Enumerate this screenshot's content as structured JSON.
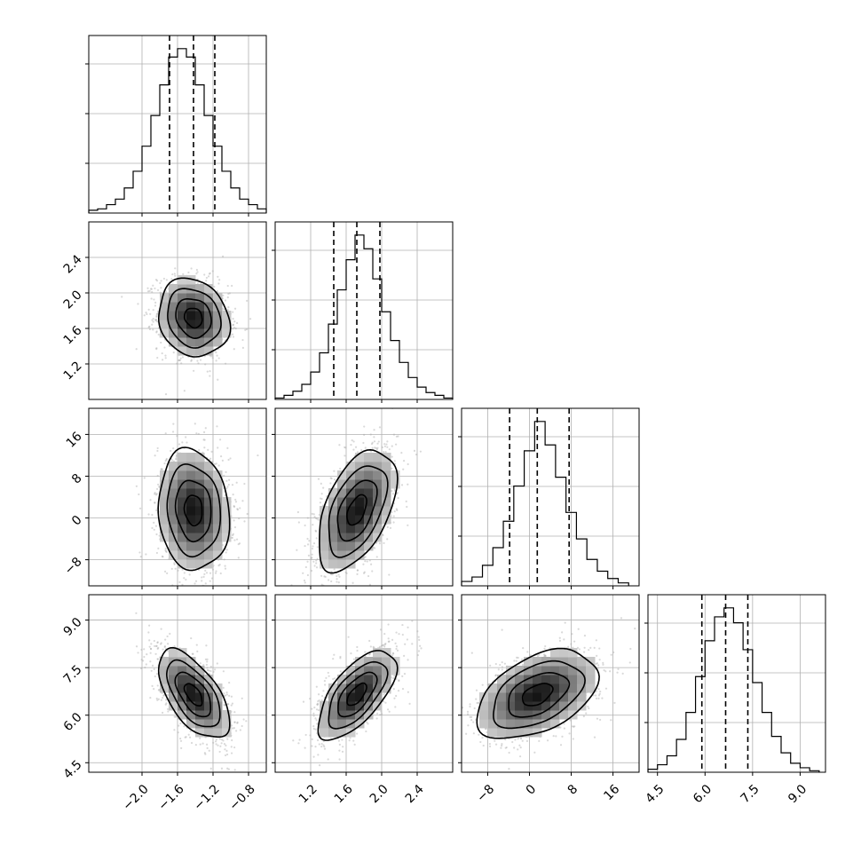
{
  "chart_data": {
    "type": "corner",
    "parameters": [
      {
        "index": 0,
        "xlim": [
          -2.6,
          -0.6
        ],
        "ticks": [
          -2.0,
          -1.6,
          -1.2,
          -0.8
        ],
        "tick_labels": [
          "−2.0",
          "−1.6",
          "−1.2",
          "−0.8"
        ],
        "center": -1.42,
        "sd": 0.2,
        "quantiles": [
          -1.69,
          -1.42,
          -1.18
        ],
        "hist_bins": [
          -2.6,
          -2.5,
          -2.4,
          -2.3,
          -2.2,
          -2.1,
          -2.0,
          -1.9,
          -1.8,
          -1.7,
          -1.6,
          -1.5,
          -1.4,
          -1.3,
          -1.2,
          -1.1,
          -1.0,
          -0.9,
          -0.8,
          -0.7
        ],
        "hist_counts": [
          2,
          3,
          6,
          10,
          18,
          30,
          48,
          70,
          92,
          112,
          118,
          112,
          92,
          70,
          48,
          30,
          18,
          10,
          6,
          3
        ]
      },
      {
        "index": 1,
        "xlim": [
          0.8,
          2.8
        ],
        "ticks": [
          1.2,
          1.6,
          2.0,
          2.4
        ],
        "tick_labels": [
          "1.2",
          "1.6",
          "2.0",
          "2.4"
        ],
        "center": 1.72,
        "sd": 0.22,
        "quantiles": [
          1.46,
          1.72,
          1.98
        ],
        "hist_bins": [
          0.8,
          0.9,
          1.0,
          1.1,
          1.2,
          1.3,
          1.4,
          1.5,
          1.6,
          1.7,
          1.8,
          1.9,
          2.0,
          2.1,
          2.2,
          2.3,
          2.4,
          2.5,
          2.6,
          2.7
        ],
        "hist_counts": [
          1,
          3,
          6,
          11,
          20,
          34,
          55,
          80,
          102,
          120,
          110,
          88,
          64,
          43,
          27,
          16,
          9,
          5,
          3,
          1
        ]
      },
      {
        "index": 2,
        "xlim": [
          -13,
          21
        ],
        "ticks": [
          -8,
          0,
          8,
          16
        ],
        "tick_labels": [
          "−8",
          "0",
          "8",
          "16"
        ],
        "center": 1.5,
        "sd": 5.8,
        "quantiles": [
          -3.8,
          1.5,
          7.6
        ],
        "hist_bins": [
          -13,
          -11,
          -9,
          -7,
          -5,
          -3,
          -1,
          1,
          3,
          5,
          7,
          9,
          11,
          13,
          15,
          17
        ],
        "hist_counts": [
          3,
          6,
          14,
          26,
          44,
          68,
          92,
          112,
          96,
          74,
          50,
          32,
          18,
          10,
          5,
          2
        ]
      },
      {
        "index": 3,
        "xlim": [
          4.2,
          9.8
        ],
        "ticks": [
          4.5,
          6.0,
          7.5,
          9.0
        ],
        "tick_labels": [
          "4.5",
          "6.0",
          "7.5",
          "9.0"
        ],
        "center": 6.65,
        "sd": 0.7,
        "quantiles": [
          5.9,
          6.65,
          7.35
        ],
        "hist_bins": [
          4.2,
          4.5,
          4.8,
          5.1,
          5.4,
          5.7,
          6.0,
          6.3,
          6.6,
          6.9,
          7.2,
          7.5,
          7.8,
          8.1,
          8.4,
          8.7,
          9.0,
          9.3
        ],
        "hist_counts": [
          2,
          5,
          11,
          22,
          40,
          64,
          88,
          104,
          110,
          100,
          82,
          60,
          40,
          24,
          13,
          6,
          3,
          1
        ]
      }
    ],
    "pairs": [
      {
        "x": 0,
        "y": 1,
        "corr": -0.15
      },
      {
        "x": 0,
        "y": 2,
        "corr": -0.1
      },
      {
        "x": 1,
        "y": 2,
        "corr": 0.5
      },
      {
        "x": 0,
        "y": 3,
        "corr": -0.6
      },
      {
        "x": 1,
        "y": 3,
        "corr": 0.65
      },
      {
        "x": 2,
        "y": 3,
        "corr": 0.45
      }
    ],
    "y_axis_labels": {
      "1": [
        "1.2",
        "1.6",
        "2.0",
        "2.4"
      ],
      "2": [
        "−8",
        "0",
        "8",
        "16"
      ],
      "3": [
        "4.5",
        "6.0",
        "7.5",
        "9.0"
      ]
    },
    "contour_levels_sigma": [
      0.5,
      1.0,
      1.5,
      2.0
    ],
    "grid": true,
    "colors": {
      "points": "#aaaaaa",
      "lines": "#000000",
      "grid": "#b0b0b0",
      "density": "#000000"
    }
  }
}
